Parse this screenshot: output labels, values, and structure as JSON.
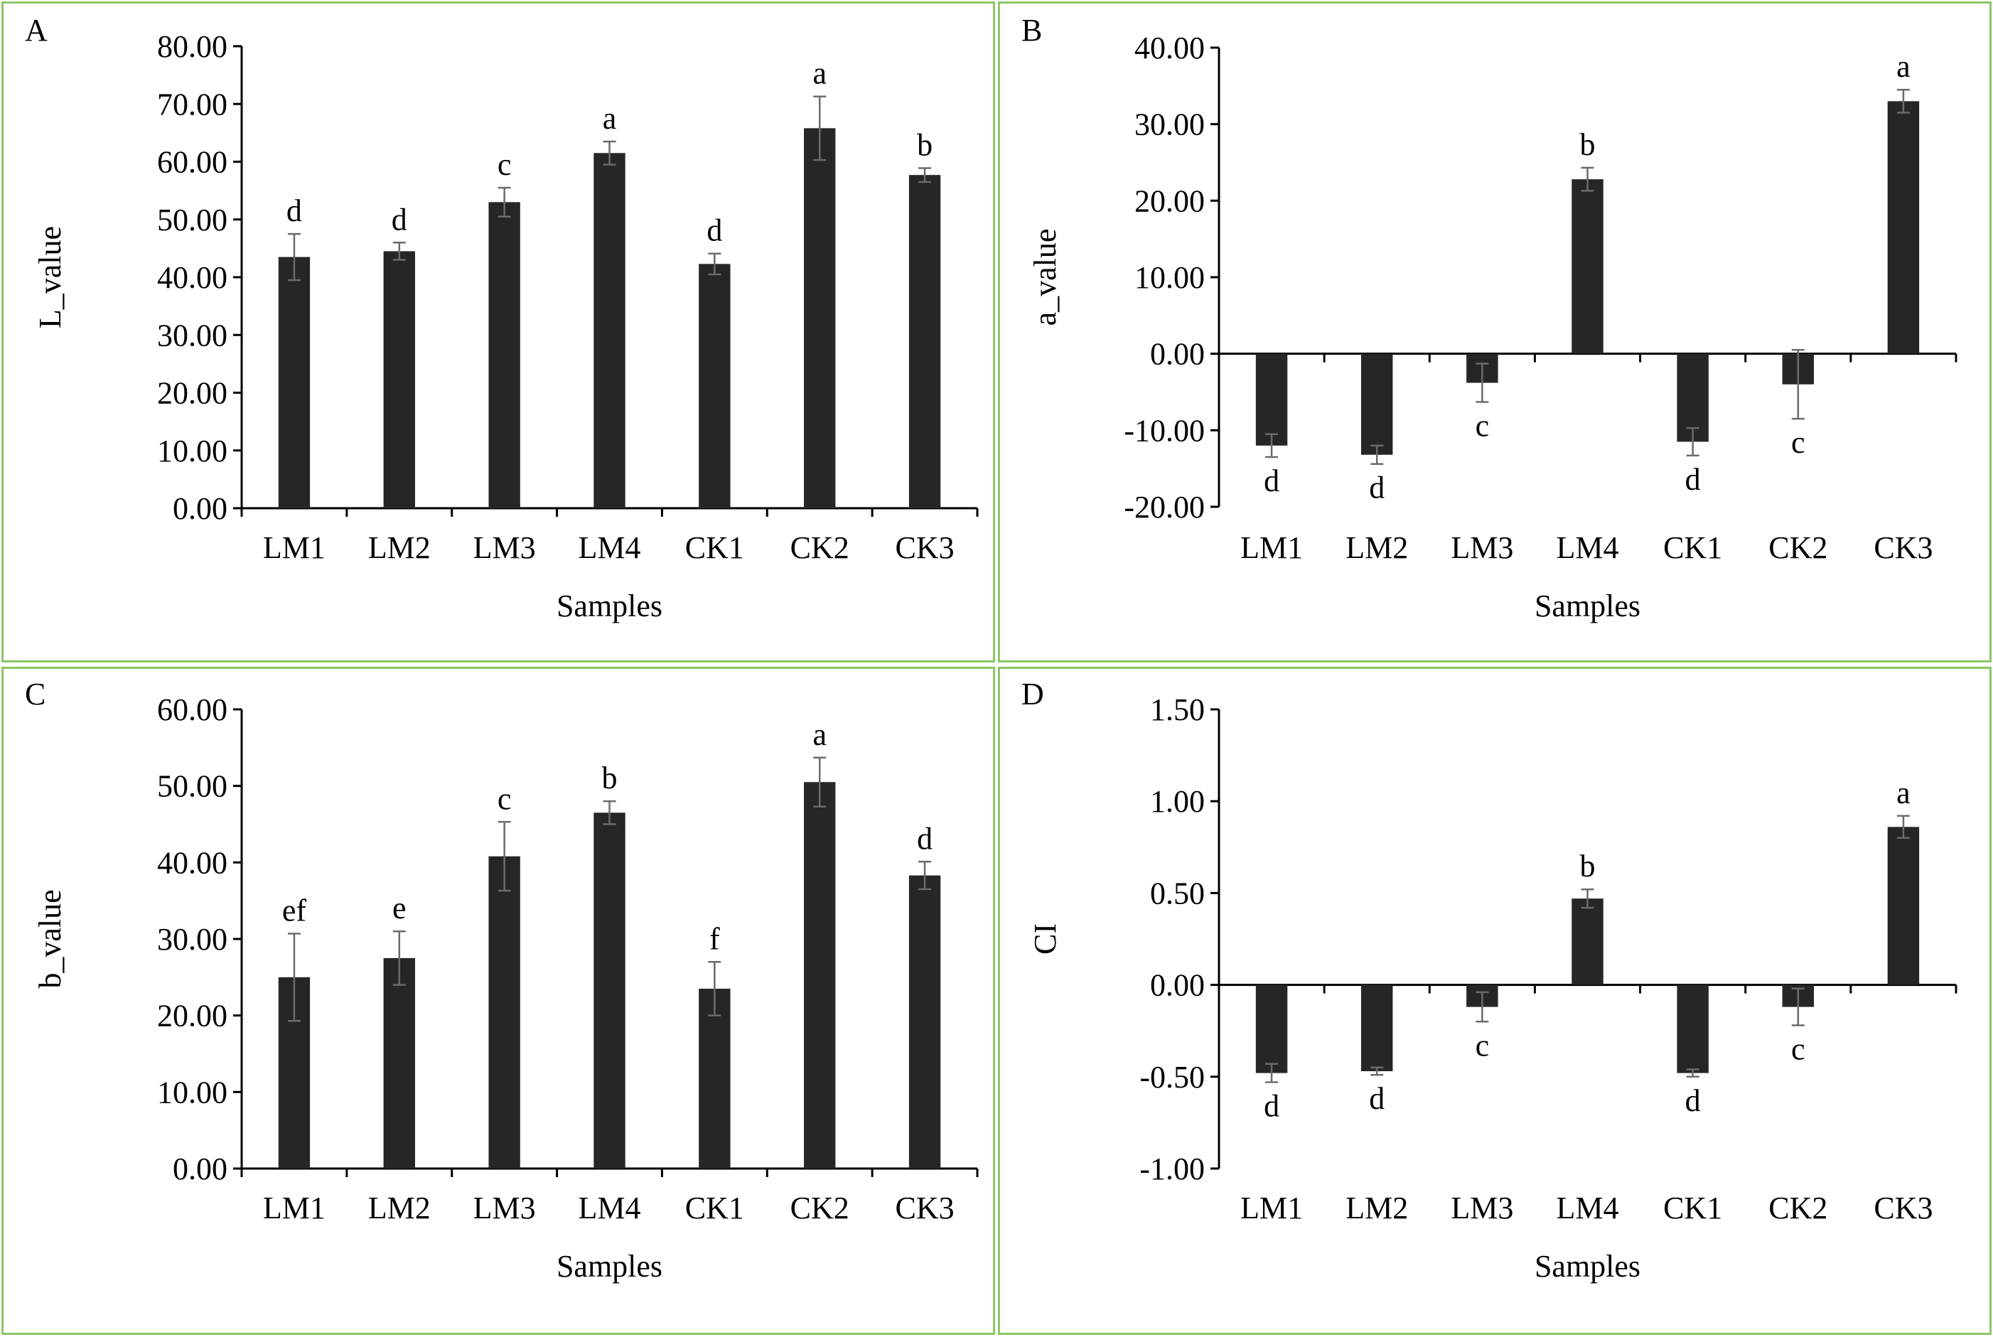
{
  "chart_data": [
    {
      "panel_label": "A",
      "type": "bar",
      "categories": [
        "LM1",
        "LM2",
        "LM3",
        "LM4",
        "CK1",
        "CK2",
        "CK3"
      ],
      "values": [
        43.5,
        44.5,
        53.0,
        61.5,
        42.3,
        65.8,
        57.7
      ],
      "errors": [
        4.0,
        1.5,
        2.5,
        2.0,
        1.8,
        5.5,
        1.2
      ],
      "letters": [
        "d",
        "d",
        "c",
        "a",
        "d",
        "a",
        "b"
      ],
      "xlabel": "Samples",
      "ylabel": "L_value",
      "ylim": [
        0,
        80
      ],
      "yticks": [
        0,
        10,
        20,
        30,
        40,
        50,
        60,
        70,
        80
      ],
      "ytick_labels": [
        "0.00",
        "10.00",
        "20.00",
        "30.00",
        "40.00",
        "50.00",
        "60.00",
        "70.00",
        "80.00"
      ],
      "grid": false
    },
    {
      "panel_label": "B",
      "type": "bar",
      "categories": [
        "LM1",
        "LM2",
        "LM3",
        "LM4",
        "CK1",
        "CK2",
        "CK3"
      ],
      "values": [
        -12.0,
        -13.2,
        -3.8,
        22.8,
        -11.5,
        -4.0,
        33.0
      ],
      "errors": [
        1.5,
        1.2,
        2.5,
        1.5,
        1.8,
        4.5,
        1.5
      ],
      "letters": [
        "d",
        "d",
        "c",
        "b",
        "d",
        "c",
        "a"
      ],
      "xlabel": "Samples",
      "ylabel": "a_value",
      "ylim": [
        -20,
        40
      ],
      "yticks": [
        -20,
        -10,
        0,
        10,
        20,
        30,
        40
      ],
      "ytick_labels": [
        "-20.00",
        "-10.00",
        "0.00",
        "10.00",
        "20.00",
        "30.00",
        "40.00"
      ],
      "grid": false
    },
    {
      "panel_label": "C",
      "type": "bar",
      "categories": [
        "LM1",
        "LM2",
        "LM3",
        "LM4",
        "CK1",
        "CK2",
        "CK3"
      ],
      "values": [
        25.0,
        27.5,
        40.8,
        46.5,
        23.5,
        50.5,
        38.3
      ],
      "errors": [
        5.7,
        3.5,
        4.5,
        1.5,
        3.5,
        3.2,
        1.8
      ],
      "letters": [
        "ef",
        "e",
        "c",
        "b",
        "f",
        "a",
        "d"
      ],
      "xlabel": "Samples",
      "ylabel": "b_value",
      "ylim": [
        0,
        60
      ],
      "yticks": [
        0,
        10,
        20,
        30,
        40,
        50,
        60
      ],
      "ytick_labels": [
        "0.00",
        "10.00",
        "20.00",
        "30.00",
        "40.00",
        "50.00",
        "60.00"
      ],
      "grid": false
    },
    {
      "panel_label": "D",
      "type": "bar",
      "categories": [
        "LM1",
        "LM2",
        "LM3",
        "LM4",
        "CK1",
        "CK2",
        "CK3"
      ],
      "values": [
        -0.48,
        -0.47,
        -0.12,
        0.47,
        -0.48,
        -0.12,
        0.86
      ],
      "errors": [
        0.05,
        0.02,
        0.08,
        0.05,
        0.02,
        0.1,
        0.06
      ],
      "letters": [
        "d",
        "d",
        "c",
        "b",
        "d",
        "c",
        "a"
      ],
      "xlabel": "Samples",
      "ylabel": "CI",
      "ylim": [
        -1.0,
        1.5
      ],
      "yticks": [
        -1.0,
        -0.5,
        0,
        0.5,
        1.0,
        1.5
      ],
      "ytick_labels": [
        "-1.00",
        "-0.50",
        "0.00",
        "0.50",
        "1.00",
        "1.50"
      ],
      "grid": false
    }
  ]
}
